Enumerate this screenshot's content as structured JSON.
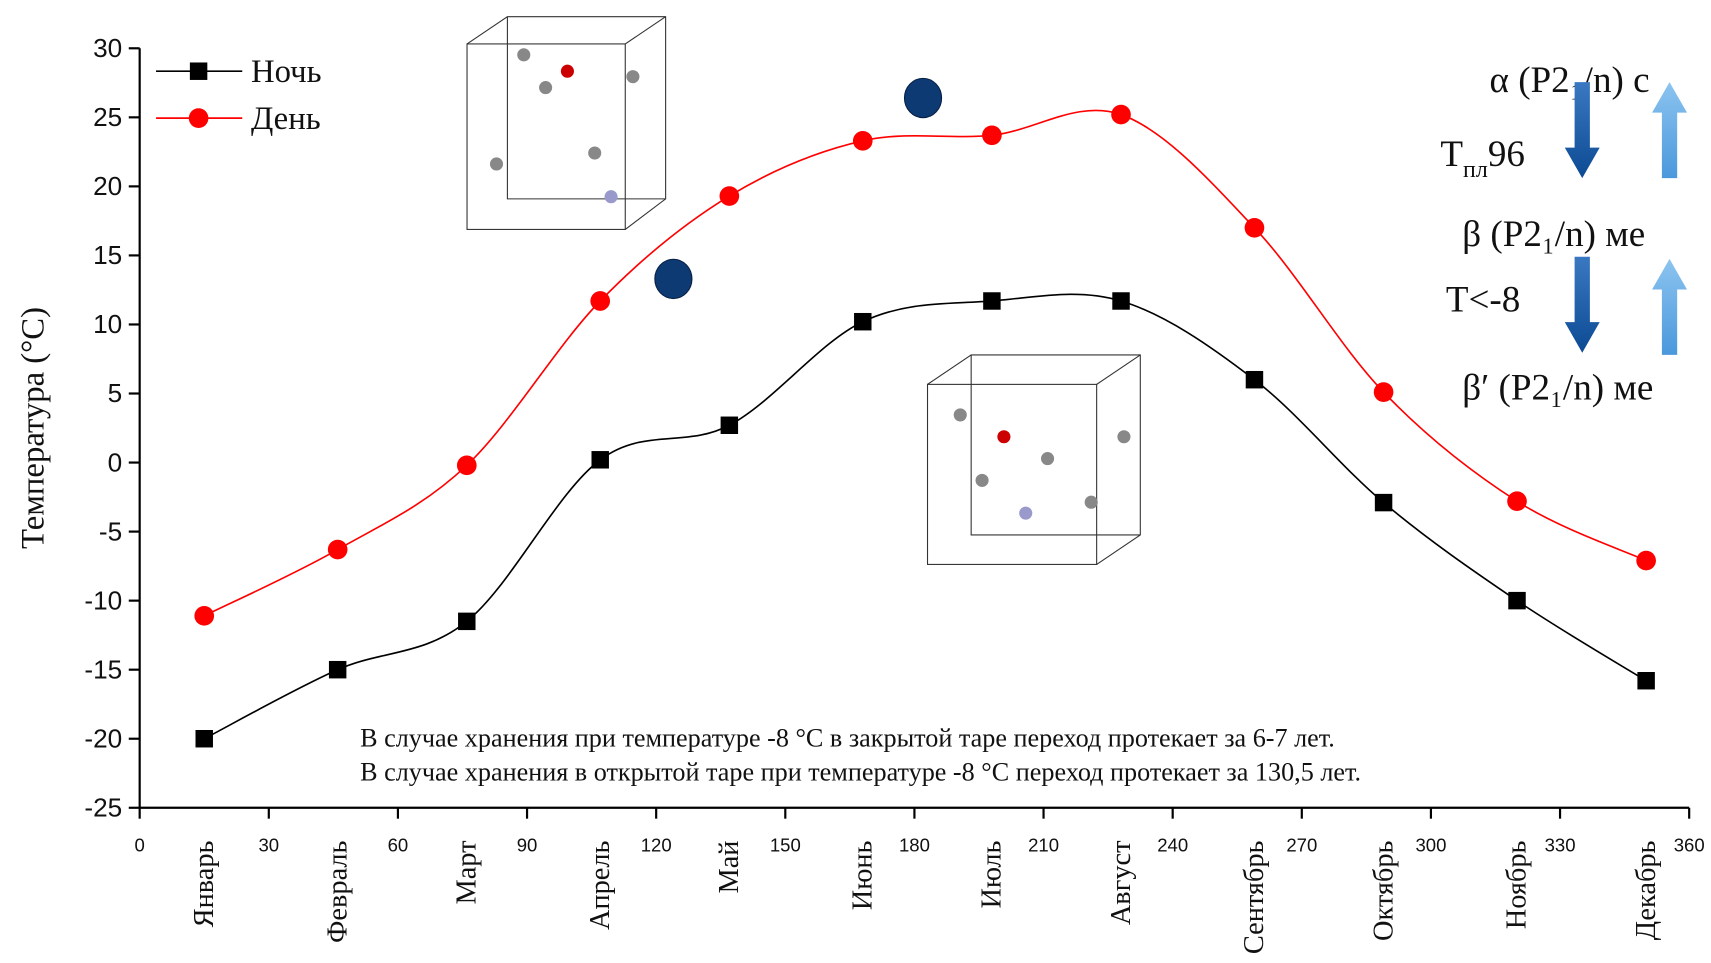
{
  "chart_data": {
    "type": "line",
    "y_label": "Температура (°C)",
    "x": [
      15,
      46,
      76,
      107,
      137,
      168,
      198,
      228,
      259,
      289,
      320,
      350
    ],
    "month_labels": [
      "Январь",
      "Февраль",
      "Март",
      "Апрель",
      "Май",
      "Июнь",
      "Июль",
      "Август",
      "Сентябрь",
      "Октябрь",
      "Ноябрь",
      "Декабрь"
    ],
    "series": [
      {
        "name": "Ночь",
        "color": "#000000",
        "marker": "square",
        "values": [
          -20,
          -15,
          -11.5,
          0.2,
          2.7,
          10.2,
          11.7,
          11.7,
          6,
          -2.9,
          -10,
          -15.8
        ]
      },
      {
        "name": "День",
        "color": "#ff0000",
        "marker": "circle",
        "values": [
          -11.1,
          -6.3,
          -0.2,
          11.7,
          19.3,
          23.3,
          23.7,
          25.2,
          17,
          5.1,
          -2.8,
          -7.1
        ]
      }
    ],
    "extra_points": {
      "color": "#0d3a73",
      "x": [
        124,
        182
      ],
      "values": [
        13.3,
        26.4
      ]
    },
    "xlim": [
      0,
      360
    ],
    "xticks": [
      0,
      30,
      60,
      90,
      120,
      150,
      180,
      210,
      240,
      270,
      300,
      330,
      360
    ],
    "ylim": [
      -25,
      30
    ],
    "yticks": [
      -25,
      -20,
      -15,
      -10,
      -5,
      0,
      5,
      10,
      15,
      20,
      25,
      30
    ],
    "annotations": [
      "В случае хранения при температуре -8 °C в закрытой таре переход протекает за 6-7 лет.",
      "В случае хранения в открытой таре при температуре -8 °C переход протекает за 130,5 лет."
    ],
    "side_panel": {
      "alpha": "α (P2₁/n) с",
      "t_main": "T",
      "t_sub": "пл",
      "t_val": "96",
      "beta": "β (P2₁/n) ме",
      "t_low": "T<-8",
      "beta_prime": "β′ (P2₁/n) ме"
    }
  }
}
